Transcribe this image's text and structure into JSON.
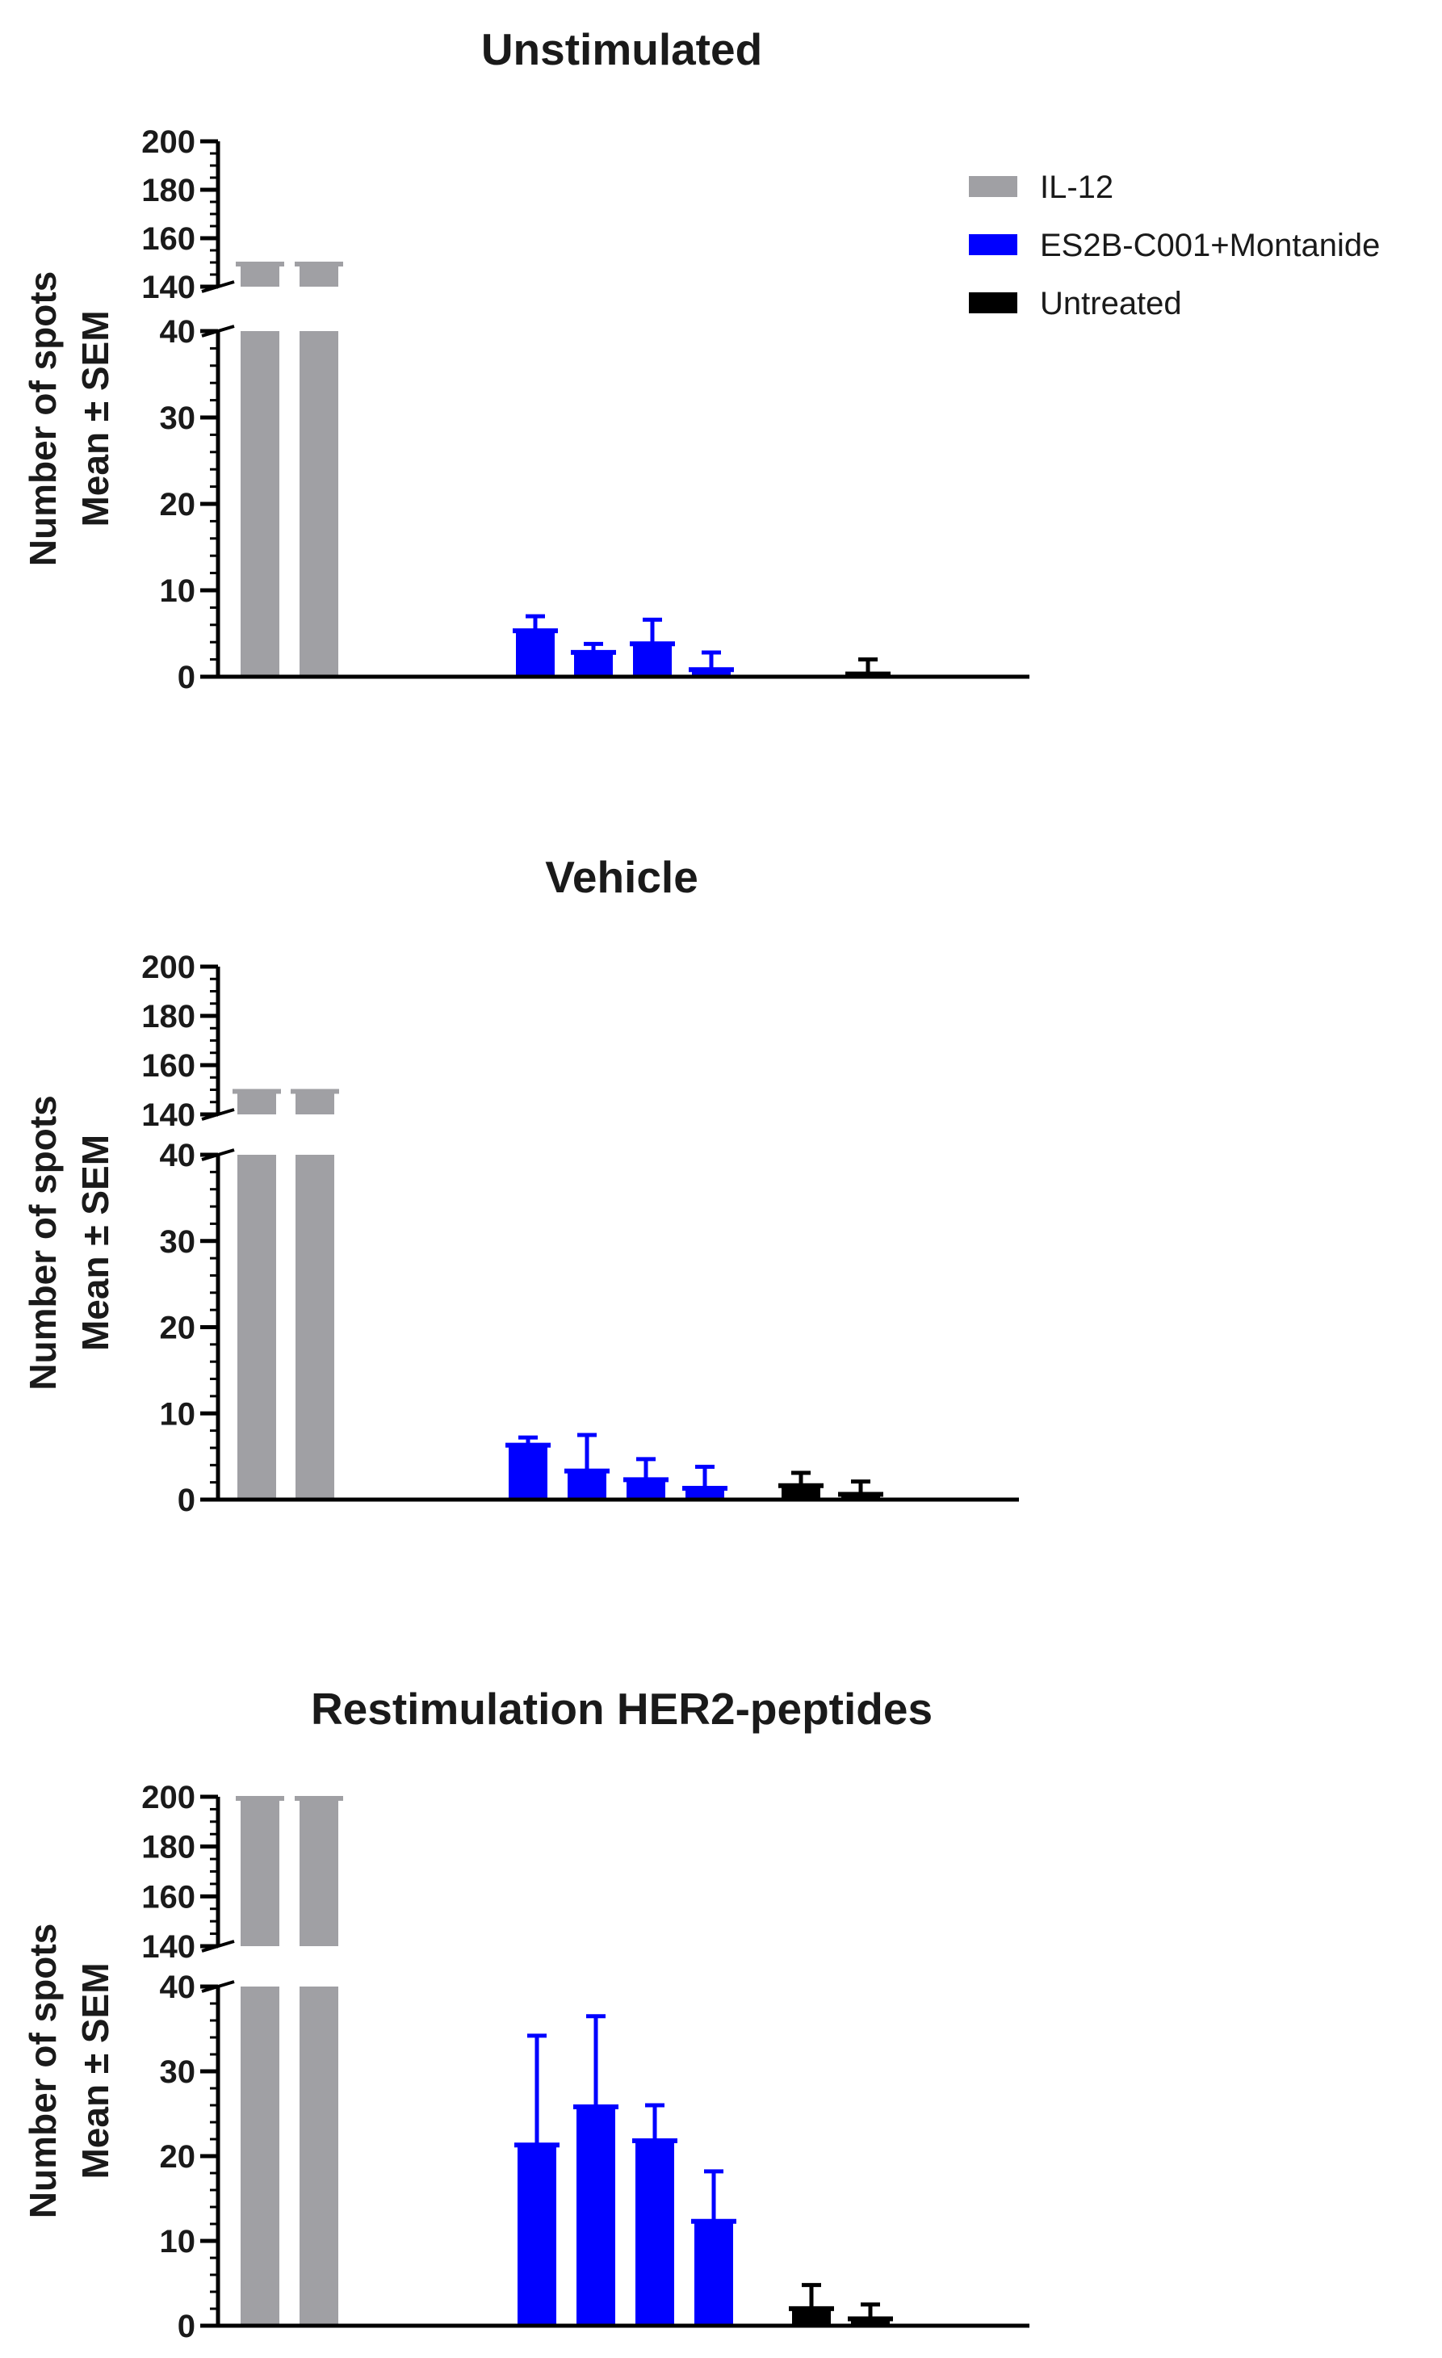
{
  "colors": {
    "IL-12": "#a0a0a4",
    "ES2B-C001+Montanide": "#0000ff",
    "Untreated": "#000000",
    "axis": "#000000"
  },
  "legend": {
    "position": "top-right",
    "entries": [
      "IL-12",
      "ES2B-C001+Montanide",
      "Untreated"
    ]
  },
  "chart_data": [
    {
      "type": "bar",
      "title": "Unstimulated",
      "ylabel_line1": "Number of spots",
      "ylabel_line2": "Mean ± SEM",
      "y_axis_break": true,
      "y_lower_segment": {
        "range": [
          0,
          40
        ],
        "ticks": [
          "0",
          "10",
          "20",
          "30",
          "40"
        ]
      },
      "y_upper_segment": {
        "range": [
          140,
          200
        ],
        "ticks": [
          "140",
          "160",
          "180",
          "200"
        ]
      },
      "series": [
        {
          "name": "IL-12",
          "values": [
            150,
            150
          ],
          "sem": [
            0,
            0
          ]
        },
        {
          "name": "ES2B-C001+Montanide",
          "values": [
            5.5,
            3,
            4,
            1
          ],
          "sem": [
            1.5,
            0.8,
            2.6,
            1.8
          ]
        },
        {
          "name": "Untreated",
          "values": [
            0.5
          ],
          "sem": [
            1.5
          ]
        }
      ]
    },
    {
      "type": "bar",
      "title": "Vehicle",
      "ylabel_line1": "Number of spots",
      "ylabel_line2": "Mean ± SEM",
      "y_axis_break": true,
      "y_lower_segment": {
        "range": [
          0,
          40
        ],
        "ticks": [
          "0",
          "10",
          "20",
          "30",
          "40"
        ]
      },
      "y_upper_segment": {
        "range": [
          140,
          200
        ],
        "ticks": [
          "140",
          "160",
          "180",
          "200"
        ]
      },
      "series": [
        {
          "name": "IL-12",
          "values": [
            150,
            150
          ],
          "sem": [
            0,
            0
          ]
        },
        {
          "name": "ES2B-C001+Montanide",
          "values": [
            6.5,
            3.5,
            2.5,
            1.5
          ],
          "sem": [
            0.7,
            4,
            2.2,
            2.3
          ]
        },
        {
          "name": "Untreated",
          "values": [
            1.8,
            0.8
          ],
          "sem": [
            1.3,
            1.3
          ]
        }
      ]
    },
    {
      "type": "bar",
      "title": "Restimulation HER2-peptides",
      "ylabel_line1": "Number of spots",
      "ylabel_line2": "Mean ± SEM",
      "y_axis_break": true,
      "y_lower_segment": {
        "range": [
          0,
          40
        ],
        "ticks": [
          "0",
          "10",
          "20",
          "30",
          "40"
        ]
      },
      "y_upper_segment": {
        "range": [
          140,
          200
        ],
        "ticks": [
          "140",
          "160",
          "180",
          "200"
        ]
      },
      "series": [
        {
          "name": "IL-12",
          "values": [
            200,
            200
          ],
          "sem": [
            0,
            0
          ]
        },
        {
          "name": "ES2B-C001+Montanide",
          "values": [
            21.5,
            26,
            22,
            12.5
          ],
          "sem": [
            12.7,
            10.5,
            4,
            5.7
          ]
        },
        {
          "name": "Untreated",
          "values": [
            2.2,
            1
          ],
          "sem": [
            2.6,
            1.5
          ]
        }
      ]
    }
  ]
}
